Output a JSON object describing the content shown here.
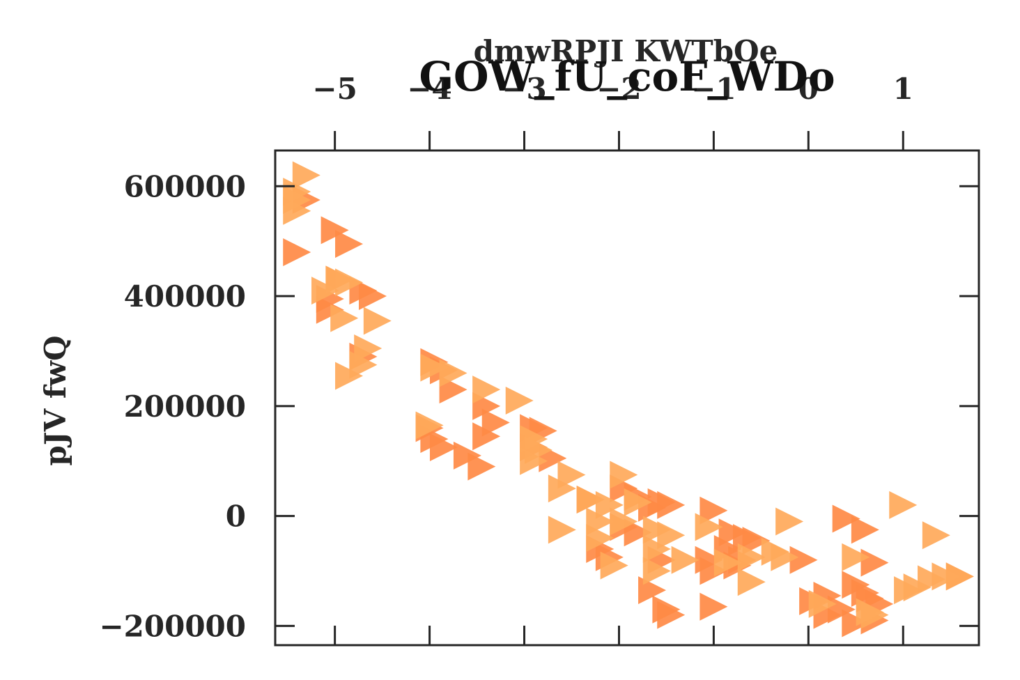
{
  "chart_data": {
    "type": "scatter",
    "title": "GOW_fU_coF_WDo",
    "xlabel": "dmwRPJI KWTbOe",
    "ylabel": "pJV fwQ",
    "xlim": [
      -5.63,
      1.8
    ],
    "ylim": [
      -235000,
      665000
    ],
    "x_ticks": [
      -5,
      -4,
      -3,
      -2,
      -1,
      0,
      1
    ],
    "x_tick_labels": [
      "−5",
      "−4",
      "−3",
      "−2",
      "−1",
      "0",
      "1"
    ],
    "y_ticks": [
      600000,
      400000,
      200000,
      0,
      -200000
    ],
    "y_tick_labels": [
      "600000",
      "400000",
      "200000",
      "0",
      "−200000"
    ],
    "x_axis_position": "top",
    "grid": false,
    "legend": "none",
    "marker": "triangle-right",
    "series": [
      {
        "color": "#ff8a45",
        "points": [
          [
            -5.3,
            575000
          ],
          [
            -5.4,
            480000
          ],
          [
            -5.0,
            520000
          ],
          [
            -4.85,
            495000
          ],
          [
            -4.95,
            430000
          ],
          [
            -4.7,
            410000
          ],
          [
            -4.6,
            400000
          ],
          [
            -5.05,
            395000
          ],
          [
            -5.05,
            375000
          ],
          [
            -4.7,
            290000
          ],
          [
            -3.95,
            280000
          ],
          [
            -3.85,
            265000
          ],
          [
            -3.75,
            230000
          ],
          [
            -3.4,
            200000
          ],
          [
            -3.3,
            170000
          ],
          [
            -3.4,
            145000
          ],
          [
            -4.0,
            160000
          ],
          [
            -3.95,
            140000
          ],
          [
            -3.85,
            125000
          ],
          [
            -3.6,
            110000
          ],
          [
            -3.45,
            90000
          ],
          [
            -2.9,
            160000
          ],
          [
            -2.8,
            155000
          ],
          [
            -2.9,
            125000
          ],
          [
            -2.7,
            105000
          ],
          [
            -2.3,
            30000
          ],
          [
            -1.95,
            50000
          ],
          [
            -1.8,
            35000
          ],
          [
            -1.55,
            25000
          ],
          [
            -1.65,
            15000
          ],
          [
            -1.45,
            20000
          ],
          [
            -1.95,
            -20000
          ],
          [
            -1.8,
            -30000
          ],
          [
            -2.2,
            -60000
          ],
          [
            -2.1,
            -75000
          ],
          [
            -1.55,
            -80000
          ],
          [
            -1.65,
            -135000
          ],
          [
            -1.5,
            -170000
          ],
          [
            -1.45,
            -180000
          ],
          [
            -1.0,
            -165000
          ],
          [
            -1.0,
            10000
          ],
          [
            -0.8,
            -30000
          ],
          [
            -0.65,
            -40000
          ],
          [
            -0.55,
            -45000
          ],
          [
            -0.85,
            -60000
          ],
          [
            -0.75,
            -90000
          ],
          [
            -1.05,
            -80000
          ],
          [
            -1.0,
            -100000
          ],
          [
            -0.7,
            -80000
          ],
          [
            -0.05,
            -80000
          ],
          [
            0.05,
            -155000
          ],
          [
            0.2,
            -145000
          ],
          [
            0.2,
            -180000
          ],
          [
            0.35,
            -170000
          ],
          [
            0.4,
            -5000
          ],
          [
            0.6,
            -25000
          ],
          [
            0.5,
            -125000
          ],
          [
            0.6,
            -140000
          ],
          [
            0.65,
            -150000
          ],
          [
            0.75,
            -160000
          ],
          [
            0.5,
            -195000
          ],
          [
            0.7,
            -190000
          ],
          [
            0.7,
            -85000
          ],
          [
            1.6,
            -110000
          ]
        ]
      },
      {
        "color": "#ffa95a",
        "points": [
          [
            -5.3,
            620000
          ],
          [
            -5.4,
            590000
          ],
          [
            -5.4,
            575000
          ],
          [
            -5.4,
            555000
          ],
          [
            -5.1,
            410000
          ],
          [
            -4.95,
            430000
          ],
          [
            -4.85,
            425000
          ],
          [
            -4.9,
            360000
          ],
          [
            -4.55,
            355000
          ],
          [
            -4.65,
            305000
          ],
          [
            -4.7,
            275000
          ],
          [
            -4.85,
            255000
          ],
          [
            -3.95,
            270000
          ],
          [
            -3.75,
            260000
          ],
          [
            -3.4,
            230000
          ],
          [
            -3.05,
            210000
          ],
          [
            -4.0,
            165000
          ],
          [
            -2.9,
            140000
          ],
          [
            -2.85,
            120000
          ],
          [
            -2.9,
            100000
          ],
          [
            -2.3,
            30000
          ],
          [
            -2.1,
            20000
          ],
          [
            -2.5,
            75000
          ],
          [
            -2.6,
            50000
          ],
          [
            -2.6,
            -25000
          ],
          [
            -2.2,
            -10000
          ],
          [
            -2.2,
            -40000
          ],
          [
            -2.05,
            -90000
          ],
          [
            -1.95,
            75000
          ],
          [
            -1.8,
            25000
          ],
          [
            -1.95,
            -10000
          ],
          [
            -1.6,
            -25000
          ],
          [
            -1.6,
            -60000
          ],
          [
            -1.45,
            -35000
          ],
          [
            -1.6,
            -100000
          ],
          [
            -1.3,
            -80000
          ],
          [
            -1.05,
            -20000
          ],
          [
            -0.85,
            -85000
          ],
          [
            -0.6,
            -120000
          ],
          [
            -0.6,
            -75000
          ],
          [
            -0.35,
            -65000
          ],
          [
            -0.25,
            -75000
          ],
          [
            -0.2,
            -10000
          ],
          [
            0.5,
            -75000
          ],
          [
            0.7,
            -180000
          ],
          [
            1.0,
            20000
          ],
          [
            1.35,
            -35000
          ],
          [
            1.3,
            -115000
          ],
          [
            1.45,
            -110000
          ],
          [
            1.6,
            -110000
          ],
          [
            1.15,
            -130000
          ],
          [
            1.05,
            -135000
          ],
          [
            0.65,
            -175000
          ],
          [
            0.15,
            -160000
          ]
        ]
      }
    ]
  }
}
